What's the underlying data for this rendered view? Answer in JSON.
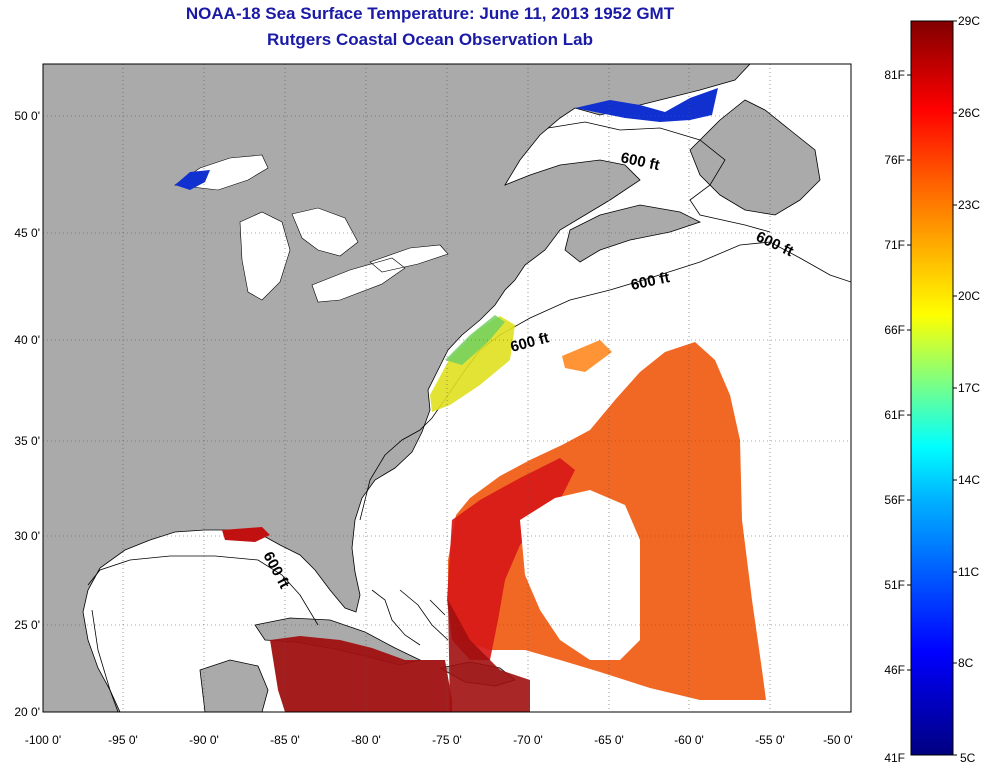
{
  "title": "NOAA-18 Sea Surface Temperature:  June 11, 2013 1952 GMT",
  "subtitle": "Rutgers Coastal Ocean Observation Lab",
  "map": {
    "lat_ticks": [
      "50 0'",
      "45 0'",
      "40 0'",
      "35 0'",
      "30 0'",
      "25 0'",
      "20 0'"
    ],
    "lon_ticks": [
      "-100 0'",
      "-95 0'",
      "-90 0'",
      "-85 0'",
      "-80 0'",
      "-75 0'",
      "-70 0'",
      "-65 0'",
      "-60 0'",
      "-55 0'",
      "-50 0'"
    ],
    "contour_label": "600 ft",
    "colors": {
      "land": "#aaaaaa",
      "ocean": "#ffffff"
    }
  },
  "colorbar": {
    "celsius_labels": [
      "29C",
      "26C",
      "23C",
      "20C",
      "17C",
      "14C",
      "11C",
      "8C",
      "5C"
    ],
    "fahrenheit_labels": [
      "81F",
      "76F",
      "71F",
      "66F",
      "61F",
      "56F",
      "51F",
      "46F",
      "41F"
    ],
    "colors": [
      "#000080",
      "#0000ff",
      "#00ffff",
      "#ffff00",
      "#ff8000",
      "#ff0000",
      "#800000"
    ]
  }
}
